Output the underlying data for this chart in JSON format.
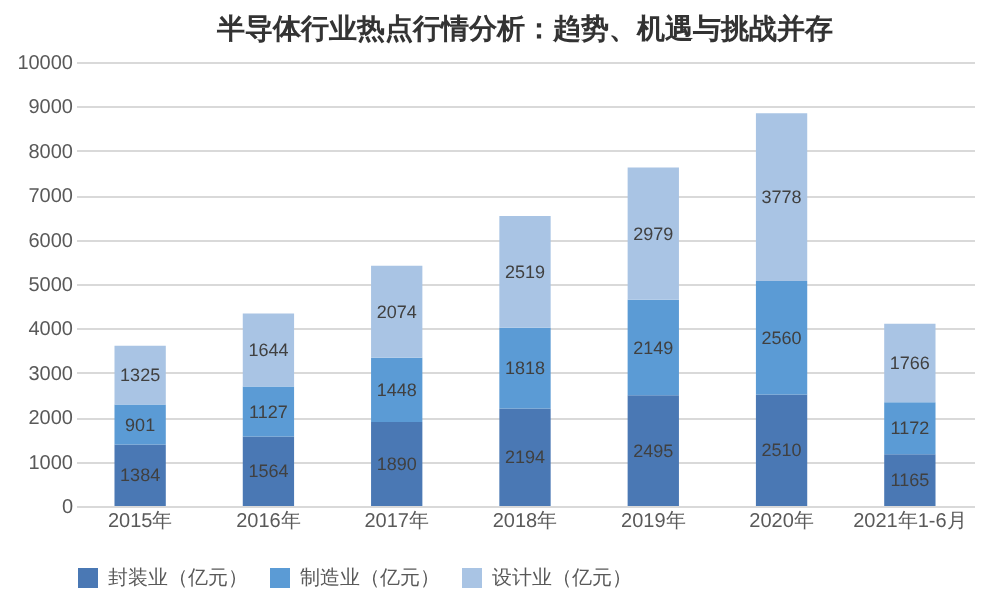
{
  "chart_data": {
    "type": "bar",
    "title": "半导体行业热点行情分析：趋势、机遇与挑战并存",
    "categories": [
      "2015年",
      "2016年",
      "2017年",
      "2018年",
      "2019年",
      "2020年",
      "2021年1-6月"
    ],
    "series": [
      {
        "name": "封装业（亿元）",
        "color": "#4a78b4",
        "values": [
          1384,
          1564,
          1890,
          2194,
          2495,
          2510,
          1165
        ]
      },
      {
        "name": "制造业（亿元）",
        "color": "#5b9bd5",
        "values": [
          901,
          1127,
          1448,
          1818,
          2149,
          2560,
          1172
        ]
      },
      {
        "name": "设计业（亿元）",
        "color": "#a9c4e4",
        "values": [
          1325,
          1644,
          2074,
          2519,
          2979,
          3778,
          1766
        ]
      }
    ],
    "stacked": true,
    "data_labels": true,
    "ylim": [
      0,
      10000
    ],
    "yticks": [
      0,
      1000,
      2000,
      3000,
      4000,
      5000,
      6000,
      7000,
      8000,
      9000,
      10000
    ],
    "grid": "y",
    "legend": "bottom"
  }
}
